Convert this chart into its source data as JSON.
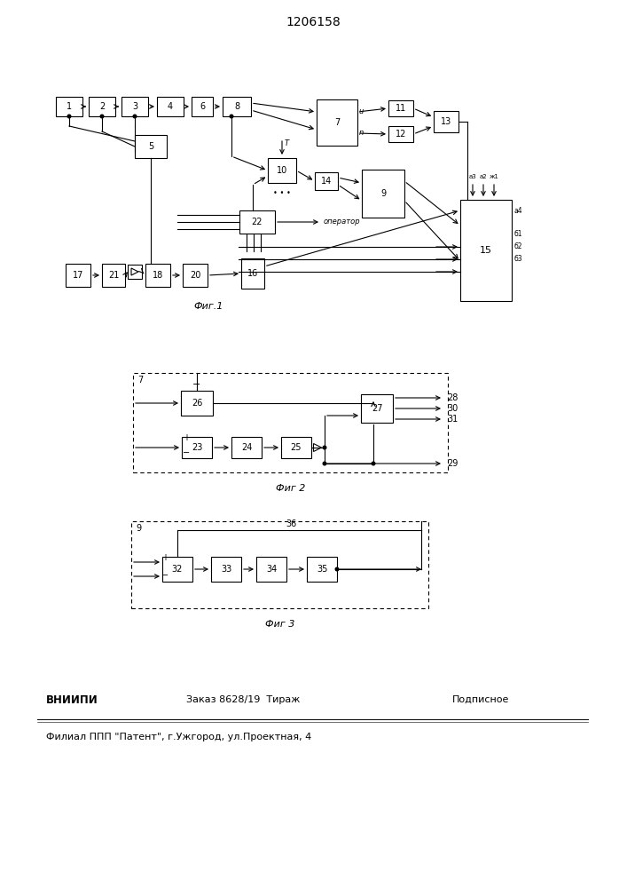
{
  "title": "1206158",
  "fig1_caption": "Фиг.1",
  "fig2_caption": "Фиг 2",
  "fig3_caption": "Фиг 3",
  "footer_bold": "ВНИИПИ",
  "footer_mid": "Заказ 8628/19  Тираж",
  "footer_right": "Подписное",
  "footer_line2": "Филиал ППП \"Патент\", г.Ужгород, ул.Проектная, 4",
  "bg_color": "#ffffff",
  "line_color": "#000000"
}
